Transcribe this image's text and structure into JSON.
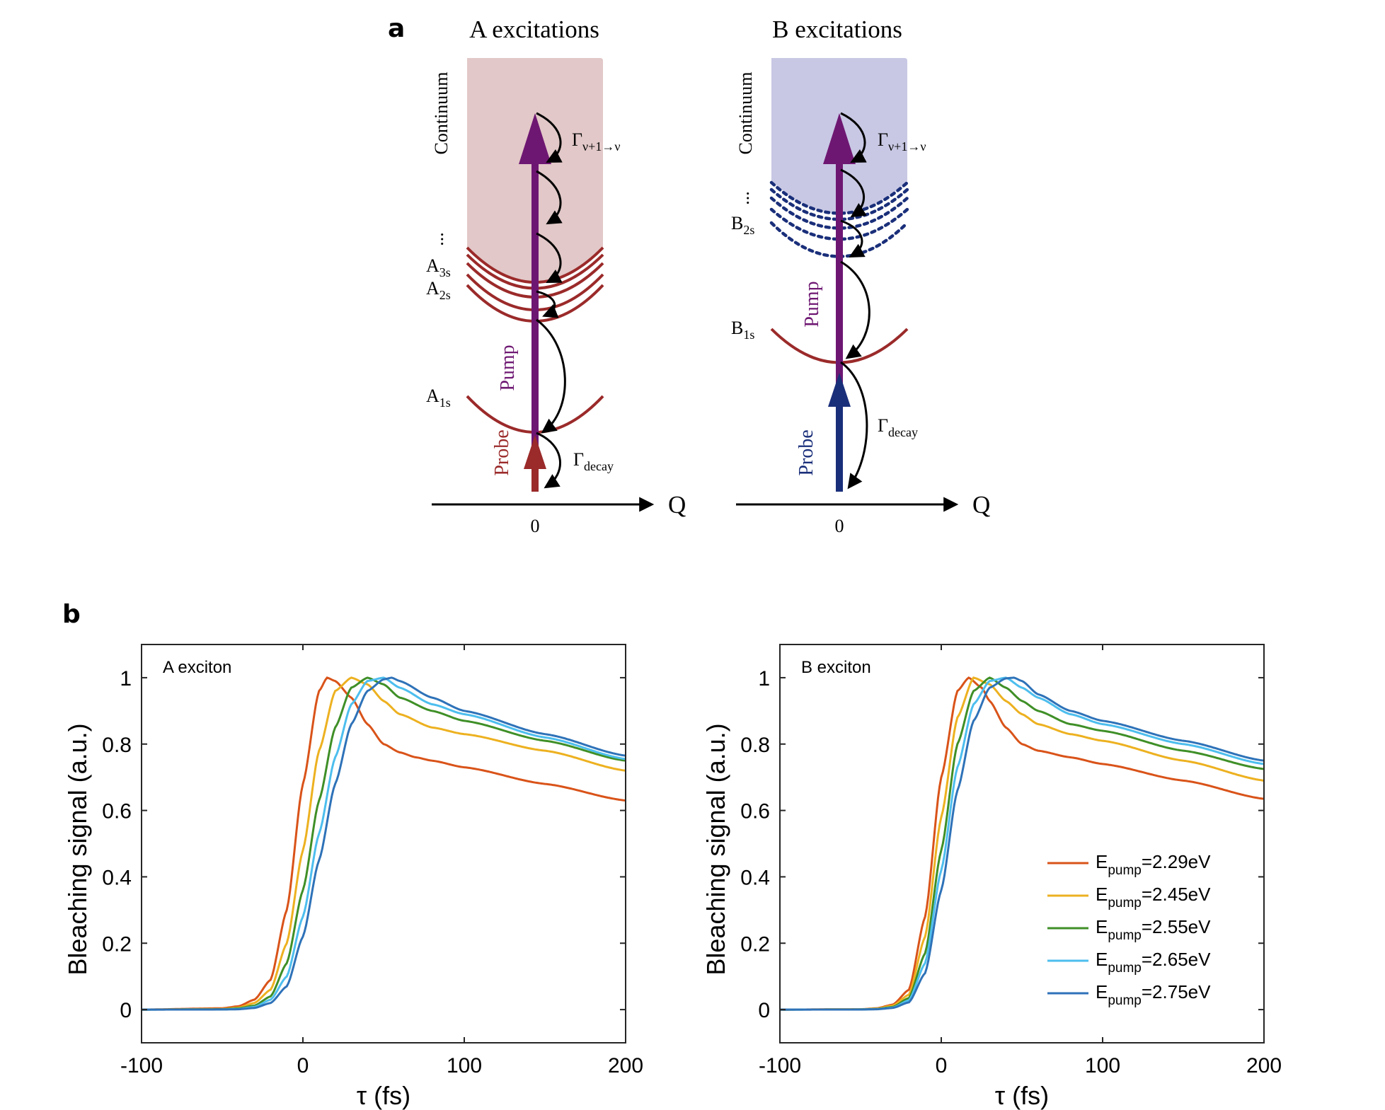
{
  "panel_a": {
    "letter": "a",
    "left": {
      "title": "A excitations",
      "continuum_label": "Continuum",
      "dots": "...",
      "levels": [
        {
          "label": "A",
          "sub": "3s"
        },
        {
          "label": "A",
          "sub": "2s"
        },
        {
          "label": "A",
          "sub": "1s"
        }
      ],
      "pump_label": "Pump",
      "probe_label": "Probe",
      "gamma_relax": {
        "symbol": "Γ",
        "sub": "ν+1→ν"
      },
      "gamma_decay": {
        "symbol": "Γ",
        "sub": "decay"
      },
      "axis_label": "Q",
      "origin_label": "0",
      "continuum_color": "#e2c8c8",
      "level_color": "#9b2a2a",
      "probe_color": "#9b2a2a"
    },
    "right": {
      "title": "B excitations",
      "continuum_label": "Continuum",
      "dots": "...",
      "levels": [
        {
          "label": "B",
          "sub": "2s"
        },
        {
          "label": "B",
          "sub": "1s"
        }
      ],
      "pump_label": "Pump",
      "probe_label": "Probe",
      "gamma_relax": {
        "symbol": "Γ",
        "sub": "ν+1→ν"
      },
      "gamma_decay": {
        "symbol": "Γ",
        "sub": "decay"
      },
      "axis_label": "Q",
      "origin_label": "0",
      "continuum_color": "#c8c8e4",
      "level_color": "#9b2a2a",
      "dotted_color": "#1a2f7a",
      "probe_color": "#1a2f7a"
    },
    "pump_color": "#6e1772"
  },
  "panel_b": {
    "letter": "b",
    "legend": {
      "prefix": "E",
      "sub": "pump",
      "entries": [
        "=2.29eV",
        "=2.45eV",
        "=2.55eV",
        "=2.65eV",
        "=2.75eV"
      ]
    }
  },
  "chart_data": [
    {
      "type": "line",
      "title": "A exciton",
      "xlabel": "τ (fs)",
      "ylabel": "Bleaching signal (a.u.)",
      "xlim": [
        -100,
        200
      ],
      "ylim": [
        -0.1,
        1.1
      ],
      "xticks": [
        -100,
        0,
        100,
        200
      ],
      "yticks": [
        0,
        0.2,
        0.4,
        0.6,
        0.8,
        1
      ],
      "xtick_labels": [
        "-100",
        "0",
        "100",
        "200"
      ],
      "ytick_labels": [
        "0",
        "0.2",
        "0.4",
        "0.6",
        "0.8",
        "1"
      ],
      "series": [
        {
          "name": "Epump=2.29eV",
          "color": "#d95319",
          "x": [
            -100,
            -50,
            -40,
            -30,
            -20,
            -10,
            0,
            10,
            15,
            20,
            30,
            40,
            50,
            60,
            70,
            80,
            100,
            150,
            200
          ],
          "y": [
            0,
            0.004,
            0.01,
            0.03,
            0.09,
            0.3,
            0.68,
            0.96,
            1.0,
            0.99,
            0.94,
            0.86,
            0.8,
            0.775,
            0.76,
            0.75,
            0.73,
            0.68,
            0.63
          ]
        },
        {
          "name": "Epump=2.45eV",
          "color": "#edb120",
          "x": [
            -100,
            -50,
            -40,
            -30,
            -20,
            -10,
            0,
            10,
            20,
            30,
            40,
            50,
            60,
            80,
            100,
            150,
            200
          ],
          "y": [
            0,
            0.002,
            0.006,
            0.02,
            0.06,
            0.2,
            0.48,
            0.78,
            0.96,
            1.0,
            0.98,
            0.93,
            0.89,
            0.85,
            0.83,
            0.78,
            0.72
          ]
        },
        {
          "name": "Epump=2.55eV",
          "color": "#3f8f27",
          "x": [
            -100,
            -50,
            -40,
            -30,
            -20,
            -10,
            0,
            10,
            20,
            30,
            40,
            50,
            60,
            80,
            100,
            150,
            200
          ],
          "y": [
            0,
            0.001,
            0.004,
            0.012,
            0.04,
            0.14,
            0.36,
            0.63,
            0.85,
            0.97,
            1.0,
            0.98,
            0.94,
            0.9,
            0.87,
            0.81,
            0.75
          ]
        },
        {
          "name": "Epump=2.65eV",
          "color": "#4dbeee",
          "x": [
            -100,
            -50,
            -40,
            -30,
            -20,
            -10,
            0,
            10,
            20,
            30,
            40,
            50,
            60,
            80,
            100,
            150,
            200
          ],
          "y": [
            0,
            0.0005,
            0.002,
            0.008,
            0.03,
            0.1,
            0.28,
            0.53,
            0.76,
            0.92,
            0.99,
            1.0,
            0.97,
            0.92,
            0.89,
            0.82,
            0.755
          ]
        },
        {
          "name": "Epump=2.75eV",
          "color": "#2e72b8",
          "x": [
            -100,
            -50,
            -40,
            -30,
            -20,
            -10,
            0,
            10,
            20,
            30,
            40,
            50,
            55,
            60,
            80,
            100,
            150,
            200
          ],
          "y": [
            0,
            0.0003,
            0.001,
            0.005,
            0.02,
            0.07,
            0.22,
            0.45,
            0.68,
            0.86,
            0.96,
            0.995,
            1.0,
            0.99,
            0.94,
            0.9,
            0.83,
            0.765
          ]
        }
      ]
    },
    {
      "type": "line",
      "title": "B exciton",
      "xlabel": "τ (fs)",
      "ylabel": "Bleaching signal (a.u.)",
      "xlim": [
        -100,
        200
      ],
      "ylim": [
        -0.1,
        1.1
      ],
      "xticks": [
        -100,
        0,
        100,
        200
      ],
      "yticks": [
        0,
        0.2,
        0.4,
        0.6,
        0.8,
        1
      ],
      "xtick_labels": [
        "-100",
        "0",
        "100",
        "200"
      ],
      "ytick_labels": [
        "0",
        "0.2",
        "0.4",
        "0.6",
        "0.8",
        "1"
      ],
      "series": [
        {
          "name": "Epump=2.29eV",
          "color": "#d95319",
          "x": [
            -100,
            -50,
            -40,
            -30,
            -20,
            -10,
            0,
            10,
            17,
            25,
            30,
            40,
            50,
            60,
            80,
            100,
            150,
            200
          ],
          "y": [
            0,
            0.001,
            0.004,
            0.015,
            0.06,
            0.28,
            0.7,
            0.96,
            1.0,
            0.97,
            0.93,
            0.85,
            0.8,
            0.78,
            0.76,
            0.74,
            0.69,
            0.635
          ]
        },
        {
          "name": "Epump=2.45eV",
          "color": "#edb120",
          "x": [
            -100,
            -50,
            -40,
            -30,
            -20,
            -10,
            0,
            10,
            20,
            30,
            40,
            50,
            60,
            80,
            100,
            150,
            200
          ],
          "y": [
            0,
            0.0008,
            0.003,
            0.012,
            0.045,
            0.22,
            0.58,
            0.88,
            1.0,
            0.98,
            0.93,
            0.89,
            0.86,
            0.83,
            0.81,
            0.75,
            0.69
          ]
        },
        {
          "name": "Epump=2.55eV",
          "color": "#3f8f27",
          "x": [
            -100,
            -50,
            -40,
            -30,
            -20,
            -10,
            0,
            10,
            20,
            30,
            40,
            50,
            60,
            80,
            100,
            150,
            200
          ],
          "y": [
            0,
            0.0005,
            0.002,
            0.008,
            0.035,
            0.17,
            0.48,
            0.8,
            0.96,
            1.0,
            0.97,
            0.93,
            0.9,
            0.86,
            0.84,
            0.78,
            0.725
          ]
        },
        {
          "name": "Epump=2.65eV",
          "color": "#4dbeee",
          "x": [
            -100,
            -50,
            -40,
            -30,
            -20,
            -10,
            0,
            10,
            20,
            30,
            40,
            50,
            60,
            80,
            100,
            150,
            200
          ],
          "y": [
            0,
            0.0003,
            0.0015,
            0.006,
            0.028,
            0.14,
            0.42,
            0.73,
            0.92,
            0.99,
            1.0,
            0.97,
            0.94,
            0.89,
            0.86,
            0.8,
            0.74
          ]
        },
        {
          "name": "Epump=2.75eV",
          "color": "#2e72b8",
          "x": [
            -100,
            -50,
            -40,
            -30,
            -20,
            -10,
            0,
            10,
            20,
            30,
            40,
            45,
            50,
            60,
            80,
            100,
            150,
            200
          ],
          "y": [
            0,
            0.0002,
            0.001,
            0.005,
            0.022,
            0.11,
            0.36,
            0.66,
            0.87,
            0.97,
            0.998,
            1.0,
            0.99,
            0.95,
            0.9,
            0.87,
            0.81,
            0.75
          ]
        }
      ]
    }
  ]
}
